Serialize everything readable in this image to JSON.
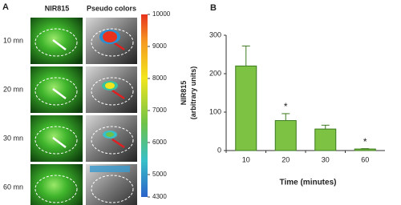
{
  "panel_a": {
    "label": "A",
    "col_headers": [
      "NIR815",
      "Pseudo colors"
    ],
    "row_labels": [
      "10 mn",
      "20 mn",
      "30 mn",
      "60 mn"
    ],
    "colorbar": {
      "clim": [
        4300,
        10000
      ],
      "ticks": [
        10000,
        9000,
        8000,
        7000,
        6000,
        5000,
        4300
      ]
    }
  },
  "chart_data": {
    "type": "bar",
    "panel_label": "B",
    "ylabel": [
      "NIR815",
      "(arbitrary units)"
    ],
    "xlabel": "Time (minutes)",
    "categories": [
      "10",
      "20",
      "30",
      "60"
    ],
    "values": [
      220,
      78,
      56,
      4
    ],
    "errors": [
      52,
      18,
      10,
      1
    ],
    "significance": [
      null,
      "*",
      null,
      "*"
    ],
    "color": "#7dc242",
    "ylim": [
      0,
      300
    ],
    "yticks": [
      0,
      100,
      200,
      300
    ]
  }
}
